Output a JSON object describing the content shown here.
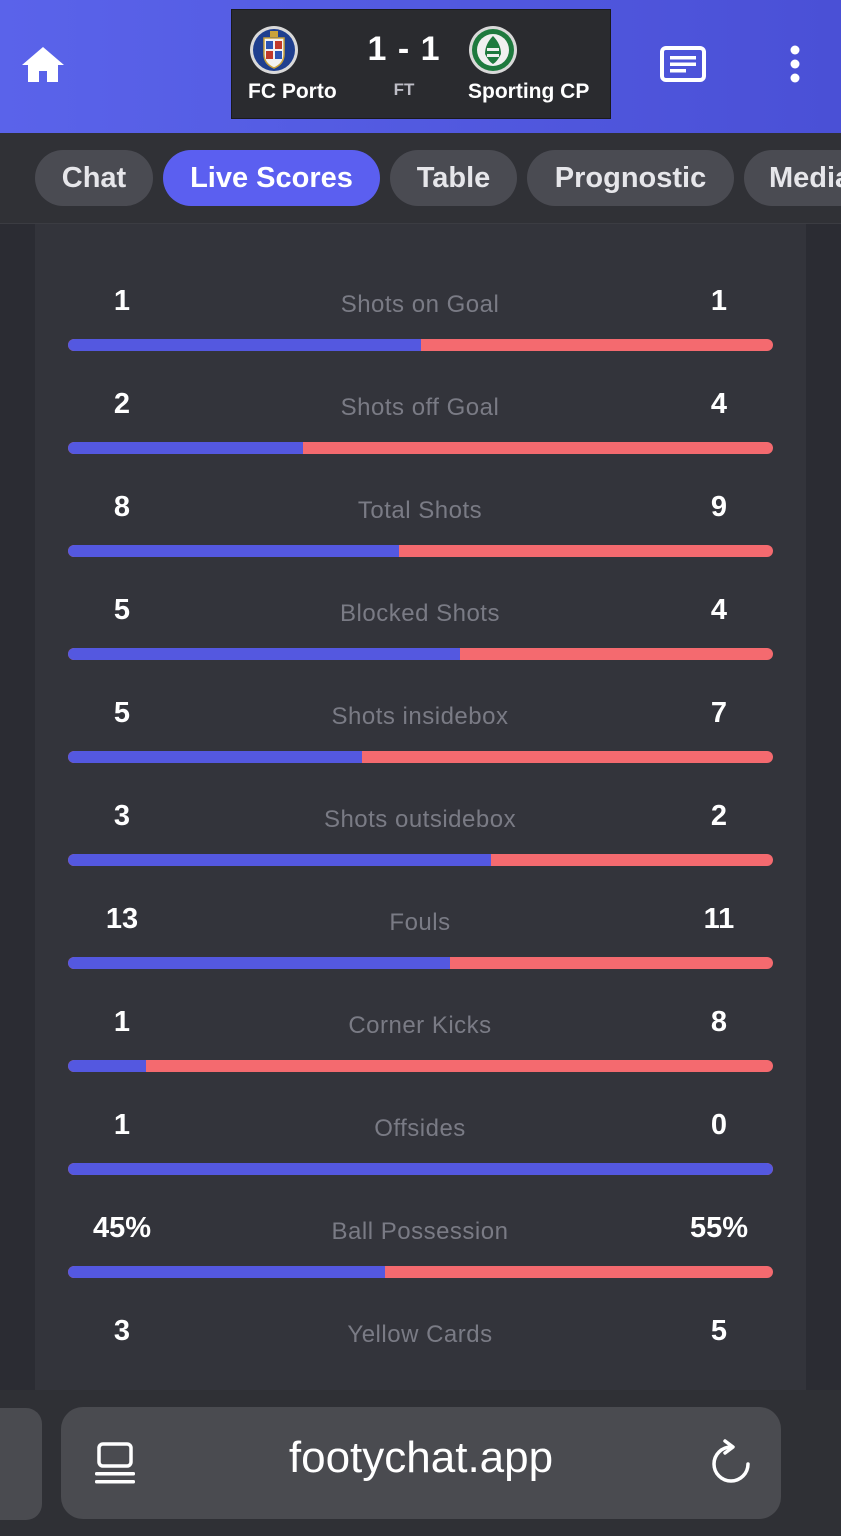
{
  "match": {
    "home_team": "FC Porto",
    "away_team": "Sporting CP",
    "score": "1 - 1",
    "status": "FT",
    "home_crest": "fc-porto-crest-icon",
    "away_crest": "sporting-cp-crest-icon"
  },
  "header": {
    "home_icon": "home-icon",
    "news_icon": "news-icon",
    "more_icon": "more-vertical-icon"
  },
  "tabs": [
    {
      "label": "Chat",
      "active": false
    },
    {
      "label": "Live Scores",
      "active": true
    },
    {
      "label": "Table",
      "active": false
    },
    {
      "label": "Prognostic",
      "active": false
    },
    {
      "label": "Media",
      "active": false
    }
  ],
  "stats": [
    {
      "label": "Shots on Goal",
      "home": "1",
      "away": "1",
      "home_share": 0.5
    },
    {
      "label": "Shots off Goal",
      "home": "2",
      "away": "4",
      "home_share": 0.333
    },
    {
      "label": "Total Shots",
      "home": "8",
      "away": "9",
      "home_share": 0.47
    },
    {
      "label": "Blocked Shots",
      "home": "5",
      "away": "4",
      "home_share": 0.556
    },
    {
      "label": "Shots insidebox",
      "home": "5",
      "away": "7",
      "home_share": 0.417
    },
    {
      "label": "Shots outsidebox",
      "home": "3",
      "away": "2",
      "home_share": 0.6
    },
    {
      "label": "Fouls",
      "home": "13",
      "away": "11",
      "home_share": 0.542
    },
    {
      "label": "Corner Kicks",
      "home": "1",
      "away": "8",
      "home_share": 0.111
    },
    {
      "label": "Offsides",
      "home": "1",
      "away": "0",
      "home_share": 1.0
    },
    {
      "label": "Ball Possession",
      "home": "45%",
      "away": "55%",
      "home_share": 0.45
    },
    {
      "label": "Yellow Cards",
      "home": "3",
      "away": "5",
      "home_share": null
    }
  ],
  "colors": {
    "home_bar": "#5458e0",
    "away_bar": "#f46a6f",
    "accent": "#5b5ff0"
  },
  "browser": {
    "url": "footychat.app",
    "tabs_icon": "tabs-icon",
    "reload_icon": "reload-icon"
  }
}
